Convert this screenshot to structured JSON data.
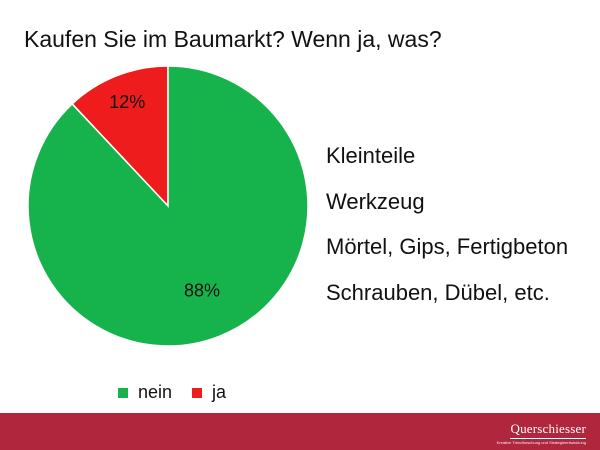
{
  "title": "Kaufen Sie im Baumarkt? Wenn ja, was?",
  "answers": [
    "Kleinteile",
    "Werkzeug",
    "Mörtel, Gips, Fertigbeton",
    "Schrauben, Dübel, etc."
  ],
  "chart_data": {
    "type": "pie",
    "title": "Kaufen Sie im Baumarkt? Wenn ja, was?",
    "categories": [
      "nein",
      "ja"
    ],
    "values": [
      88,
      12
    ],
    "labels": [
      "88%",
      "12%"
    ],
    "colors": [
      "#16b24c",
      "#ee1c1c"
    ],
    "start": "12 o'clock",
    "direction": "counterclockwise (ja slice first)",
    "legend": "bottom"
  },
  "footer": {
    "brand": "Querschiesser",
    "tagline": "Kreative Trendforschung und Strategieentwicklung",
    "color": "#b0263d"
  }
}
